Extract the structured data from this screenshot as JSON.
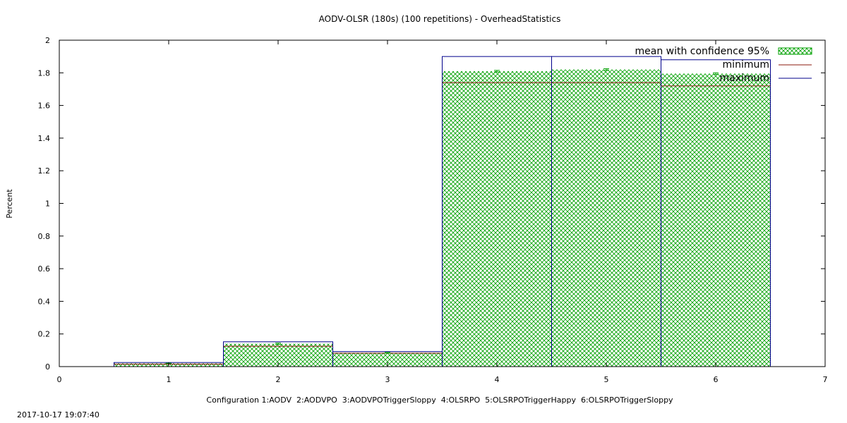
{
  "chart_data": {
    "type": "bar",
    "title": "AODV-OLSR (180s) (100 repetitions) - OverheadStatistics",
    "xlabel": "Configuration 1:AODV  2:AODVPO  3:AODVPOTriggerSloppy  4:OLSRPO  5:OLSRPOTriggerHappy  6:OLSRPOTriggerSloppy",
    "ylabel": "Percent",
    "xlim": [
      0,
      7
    ],
    "ylim": [
      0,
      2
    ],
    "xticks": [
      "0",
      "1",
      "2",
      "3",
      "4",
      "5",
      "6",
      "7"
    ],
    "yticks": [
      "0",
      "0.2",
      "0.4",
      "0.6",
      "0.8",
      "1",
      "1.2",
      "1.4",
      "1.6",
      "1.8",
      "2"
    ],
    "categories": [
      1,
      2,
      3,
      4,
      5,
      6
    ],
    "series": [
      {
        "name": "mean with confidence 95%",
        "values": [
          0.02,
          0.14,
          0.085,
          1.81,
          1.82,
          1.795
        ],
        "ci_halfwidth": [
          0.001,
          0.004,
          0.002,
          0.005,
          0.005,
          0.005
        ]
      },
      {
        "name": "minimum",
        "values": [
          0.015,
          0.125,
          0.082,
          1.74,
          1.74,
          1.72
        ]
      },
      {
        "name": "maximum",
        "values": [
          0.025,
          0.152,
          0.092,
          1.9,
          1.9,
          1.88
        ]
      }
    ],
    "legend_position": "top-right",
    "grid": false,
    "colors": {
      "mean": "#00a000",
      "minimum": "#8b1a0e",
      "maximum": "#00008b"
    }
  },
  "footer": {
    "timestamp": "2017-10-17 19:07:40"
  }
}
